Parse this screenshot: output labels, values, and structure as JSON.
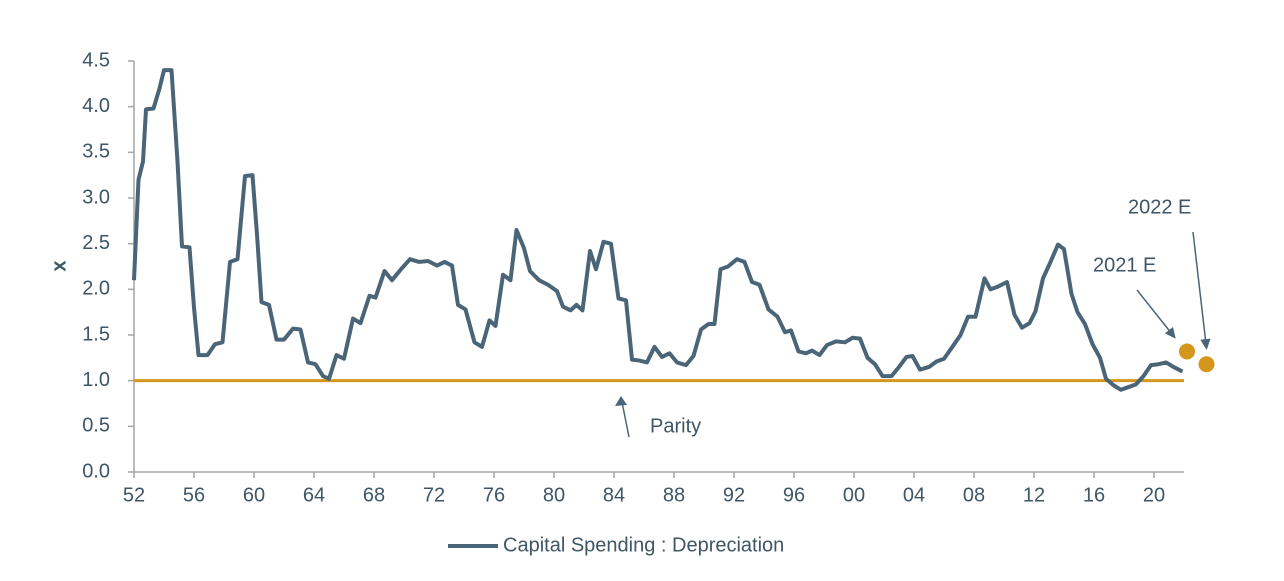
{
  "chart_data": {
    "type": "line",
    "y_label": "x",
    "xlim": [
      1952,
      2022
    ],
    "xticks": [
      {
        "value": 1952,
        "label": "52"
      },
      {
        "value": 1956,
        "label": "56"
      },
      {
        "value": 1960,
        "label": "60"
      },
      {
        "value": 1964,
        "label": "64"
      },
      {
        "value": 1968,
        "label": "68"
      },
      {
        "value": 1972,
        "label": "72"
      },
      {
        "value": 1976,
        "label": "76"
      },
      {
        "value": 1980,
        "label": "80"
      },
      {
        "value": 1984,
        "label": "84"
      },
      {
        "value": 1988,
        "label": "88"
      },
      {
        "value": 1992,
        "label": "92"
      },
      {
        "value": 1996,
        "label": "96"
      },
      {
        "value": 2000,
        "label": "00"
      },
      {
        "value": 2004,
        "label": "04"
      },
      {
        "value": 2008,
        "label": "08"
      },
      {
        "value": 2012,
        "label": "12"
      },
      {
        "value": 2016,
        "label": "16"
      },
      {
        "value": 2020,
        "label": "20"
      }
    ],
    "ylim": [
      0,
      4.5
    ],
    "yticks": [
      {
        "value": 0,
        "label": "0.0"
      },
      0.5,
      {
        "value": 1,
        "label": "1.0"
      },
      1.5,
      {
        "value": 2,
        "label": "2.0"
      },
      2.5,
      {
        "value": 3,
        "label": "3.0"
      },
      3.5,
      {
        "value": 4,
        "label": "4.0"
      },
      4.5
    ],
    "grid": false,
    "legend": "bottom",
    "series": [
      {
        "name": "Capital Spending : Depreciation",
        "color": "#4a6577",
        "x": [
          1952.0,
          1952.3,
          1952.6,
          1952.8,
          1953.3,
          1953.7,
          1954.0,
          1954.5,
          1954.9,
          1955.2,
          1955.7,
          1956.0,
          1956.3,
          1956.9,
          1957.4,
          1957.9,
          1958.4,
          1958.9,
          1959.4,
          1959.9,
          1960.2,
          1960.5,
          1961.0,
          1961.5,
          1962.0,
          1962.6,
          1963.1,
          1963.6,
          1964.1,
          1964.6,
          1965.0,
          1965.5,
          1966.0,
          1966.6,
          1967.1,
          1967.7,
          1968.1,
          1968.7,
          1969.2,
          1969.8,
          1970.4,
          1971.0,
          1971.6,
          1972.2,
          1972.7,
          1973.2,
          1973.6,
          1974.1,
          1974.7,
          1975.2,
          1975.7,
          1976.1,
          1976.6,
          1977.1,
          1977.5,
          1978.0,
          1978.4,
          1979.0,
          1979.6,
          1980.2,
          1980.6,
          1981.1,
          1981.5,
          1981.9,
          1982.4,
          1982.8,
          1983.3,
          1983.8,
          1984.3,
          1984.8,
          1985.2,
          1985.7,
          1986.2,
          1986.7,
          1987.2,
          1987.7,
          1988.2,
          1988.8,
          1989.3,
          1989.8,
          1990.3,
          1990.7,
          1991.1,
          1991.6,
          1992.2,
          1992.7,
          1993.2,
          1993.7,
          1994.3,
          1994.9,
          1995.4,
          1995.8,
          1996.3,
          1996.8,
          1997.2,
          1997.7,
          1998.2,
          1998.8,
          1999.4,
          1999.9,
          2000.4,
          2000.9,
          2001.4,
          2001.9,
          2002.5,
          2003.0,
          2003.5,
          2003.9,
          2004.4,
          2005.0,
          2005.5,
          2006.0,
          2006.6,
          2007.1,
          2007.6,
          2008.1,
          2008.7,
          2009.1,
          2009.6,
          2010.2,
          2010.7,
          2011.2,
          2011.7,
          2012.1,
          2012.6,
          2013.1,
          2013.6,
          2014.0,
          2014.5,
          2014.9,
          2015.4,
          2015.9,
          2016.4,
          2016.8,
          2017.3,
          2017.8,
          2018.3,
          2018.8,
          2019.3,
          2019.8,
          2020.3,
          2020.8,
          2021.3,
          2021.9
        ],
        "values": [
          2.1,
          3.2,
          3.4,
          3.97,
          3.98,
          4.2,
          4.4,
          4.4,
          3.4,
          2.47,
          2.46,
          1.8,
          1.28,
          1.28,
          1.4,
          1.42,
          2.3,
          2.33,
          3.24,
          3.25,
          2.6,
          1.86,
          1.83,
          1.45,
          1.45,
          1.57,
          1.56,
          1.2,
          1.18,
          1.05,
          1.02,
          1.28,
          1.24,
          1.68,
          1.63,
          1.93,
          1.91,
          2.2,
          2.1,
          2.22,
          2.33,
          2.3,
          2.31,
          2.26,
          2.3,
          2.26,
          1.83,
          1.78,
          1.42,
          1.37,
          1.66,
          1.6,
          2.16,
          2.1,
          2.65,
          2.45,
          2.2,
          2.1,
          2.05,
          1.98,
          1.81,
          1.77,
          1.83,
          1.77,
          2.42,
          2.22,
          2.52,
          2.5,
          1.9,
          1.88,
          1.23,
          1.22,
          1.2,
          1.37,
          1.26,
          1.3,
          1.2,
          1.17,
          1.27,
          1.56,
          1.62,
          1.62,
          2.22,
          2.25,
          2.33,
          2.3,
          2.08,
          2.05,
          1.78,
          1.7,
          1.53,
          1.55,
          1.32,
          1.3,
          1.33,
          1.28,
          1.39,
          1.43,
          1.42,
          1.47,
          1.46,
          1.25,
          1.18,
          1.05,
          1.05,
          1.15,
          1.26,
          1.27,
          1.12,
          1.15,
          1.21,
          1.24,
          1.38,
          1.5,
          1.7,
          1.7,
          2.12,
          2.0,
          2.03,
          2.08,
          1.72,
          1.58,
          1.63,
          1.76,
          2.12,
          2.3,
          2.49,
          2.44,
          1.95,
          1.75,
          1.62,
          1.4,
          1.25,
          1.02,
          0.95,
          0.9,
          0.93,
          0.96,
          1.05,
          1.17,
          1.18,
          1.2,
          1.15,
          1.1
        ]
      }
    ],
    "estimates": {
      "color": "#d4961c",
      "x": [
        2022.2,
        2023.5
      ],
      "values": [
        1.32,
        1.18
      ],
      "labels": [
        "2021 E",
        "2022 E"
      ]
    },
    "reference_line": {
      "value": 1,
      "color": "#d4961c",
      "label": "Parity"
    }
  }
}
